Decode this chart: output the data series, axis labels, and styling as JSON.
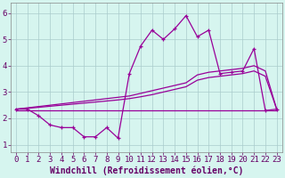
{
  "xlabel": "Windchill (Refroidissement éolien,°C)",
  "background_color": "#d6f5ef",
  "line_color": "#990099",
  "grid_color": "#aacccc",
  "x_ticks": [
    0,
    1,
    2,
    3,
    4,
    5,
    6,
    7,
    8,
    9,
    10,
    11,
    12,
    13,
    14,
    15,
    16,
    17,
    18,
    19,
    20,
    21,
    22,
    23
  ],
  "y_ticks": [
    1,
    2,
    3,
    4,
    5,
    6
  ],
  "xlim": [
    -0.5,
    23.5
  ],
  "ylim": [
    0.7,
    6.4
  ],
  "line_spiky_x": [
    0,
    1,
    2,
    3,
    4,
    5,
    6,
    7,
    8,
    9,
    10,
    11,
    12,
    13,
    14,
    15,
    16,
    17,
    18,
    19,
    20,
    21,
    22,
    23
  ],
  "line_spiky_y": [
    2.35,
    2.35,
    2.1,
    1.75,
    1.65,
    1.65,
    1.3,
    1.3,
    1.65,
    1.25,
    3.7,
    4.75,
    5.35,
    5.0,
    5.4,
    5.9,
    5.1,
    5.35,
    3.7,
    3.75,
    3.8,
    4.65,
    2.3,
    2.35
  ],
  "line_diag1_x": [
    0,
    1,
    2,
    3,
    4,
    5,
    6,
    7,
    8,
    9,
    10,
    11,
    12,
    13,
    14,
    15,
    16,
    17,
    18,
    19,
    20,
    21,
    22,
    23
  ],
  "line_diag1_y": [
    2.35,
    2.4,
    2.45,
    2.5,
    2.55,
    2.6,
    2.65,
    2.7,
    2.75,
    2.8,
    2.85,
    2.95,
    3.05,
    3.15,
    3.25,
    3.35,
    3.65,
    3.75,
    3.8,
    3.85,
    3.9,
    4.0,
    3.8,
    2.35
  ],
  "line_diag2_x": [
    0,
    1,
    2,
    3,
    4,
    5,
    6,
    7,
    8,
    9,
    10,
    11,
    12,
    13,
    14,
    15,
    16,
    17,
    18,
    19,
    20,
    21,
    22,
    23
  ],
  "line_diag2_y": [
    2.35,
    2.38,
    2.42,
    2.46,
    2.5,
    2.54,
    2.58,
    2.62,
    2.66,
    2.7,
    2.75,
    2.82,
    2.9,
    3.0,
    3.1,
    3.2,
    3.45,
    3.55,
    3.6,
    3.65,
    3.7,
    3.8,
    3.6,
    2.35
  ],
  "line_flat_x": [
    0,
    1,
    2,
    3,
    4,
    5,
    6,
    7,
    8,
    9,
    10,
    11,
    12,
    13,
    14,
    15,
    16,
    17,
    18,
    19,
    20,
    21,
    22,
    23
  ],
  "line_flat_y": [
    2.3,
    2.3,
    2.3,
    2.3,
    2.3,
    2.3,
    2.3,
    2.3,
    2.3,
    2.3,
    2.3,
    2.3,
    2.3,
    2.3,
    2.3,
    2.3,
    2.3,
    2.3,
    2.3,
    2.3,
    2.3,
    2.3,
    2.3,
    2.3
  ],
  "xlabel_fontsize": 7,
  "xlabel_color": "#660066",
  "tick_label_color": "#660066",
  "tick_fontsize": 6.5
}
